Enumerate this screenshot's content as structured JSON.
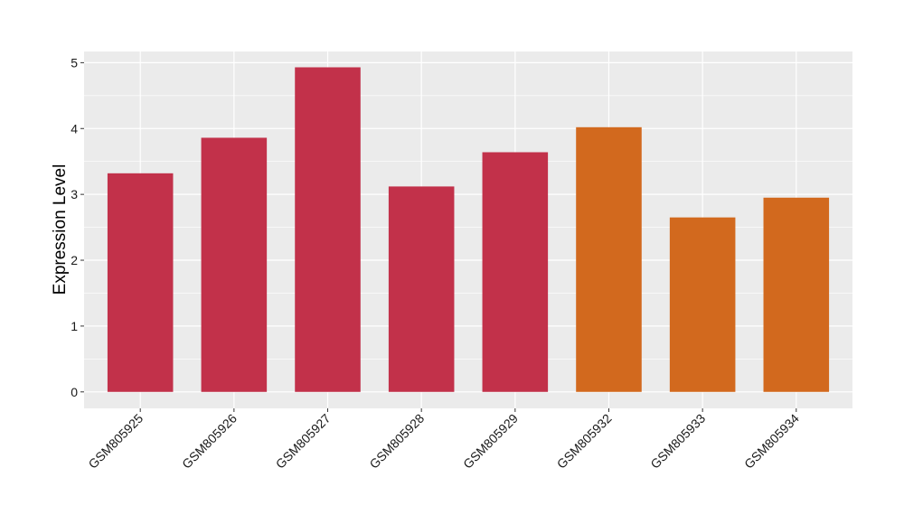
{
  "chart_data": {
    "type": "bar",
    "title": "",
    "xlabel": "",
    "ylabel": "Expression Level",
    "categories": [
      "GSM805925",
      "GSM805926",
      "GSM805927",
      "GSM805928",
      "GSM805929",
      "GSM805932",
      "GSM805933",
      "GSM805934"
    ],
    "values": [
      3.32,
      3.86,
      4.93,
      3.12,
      3.64,
      4.02,
      2.65,
      2.95
    ],
    "bar_colors": [
      "#c2314a",
      "#c2314a",
      "#c2314a",
      "#c2314a",
      "#c2314a",
      "#d2691e",
      "#d2691e",
      "#d2691e"
    ],
    "ylim": [
      -0.25,
      5.17
    ],
    "yticks": [
      0,
      1,
      2,
      3,
      4,
      5
    ],
    "grid": true,
    "panel_background": "#ebebeb",
    "grid_color": "#ffffff"
  }
}
